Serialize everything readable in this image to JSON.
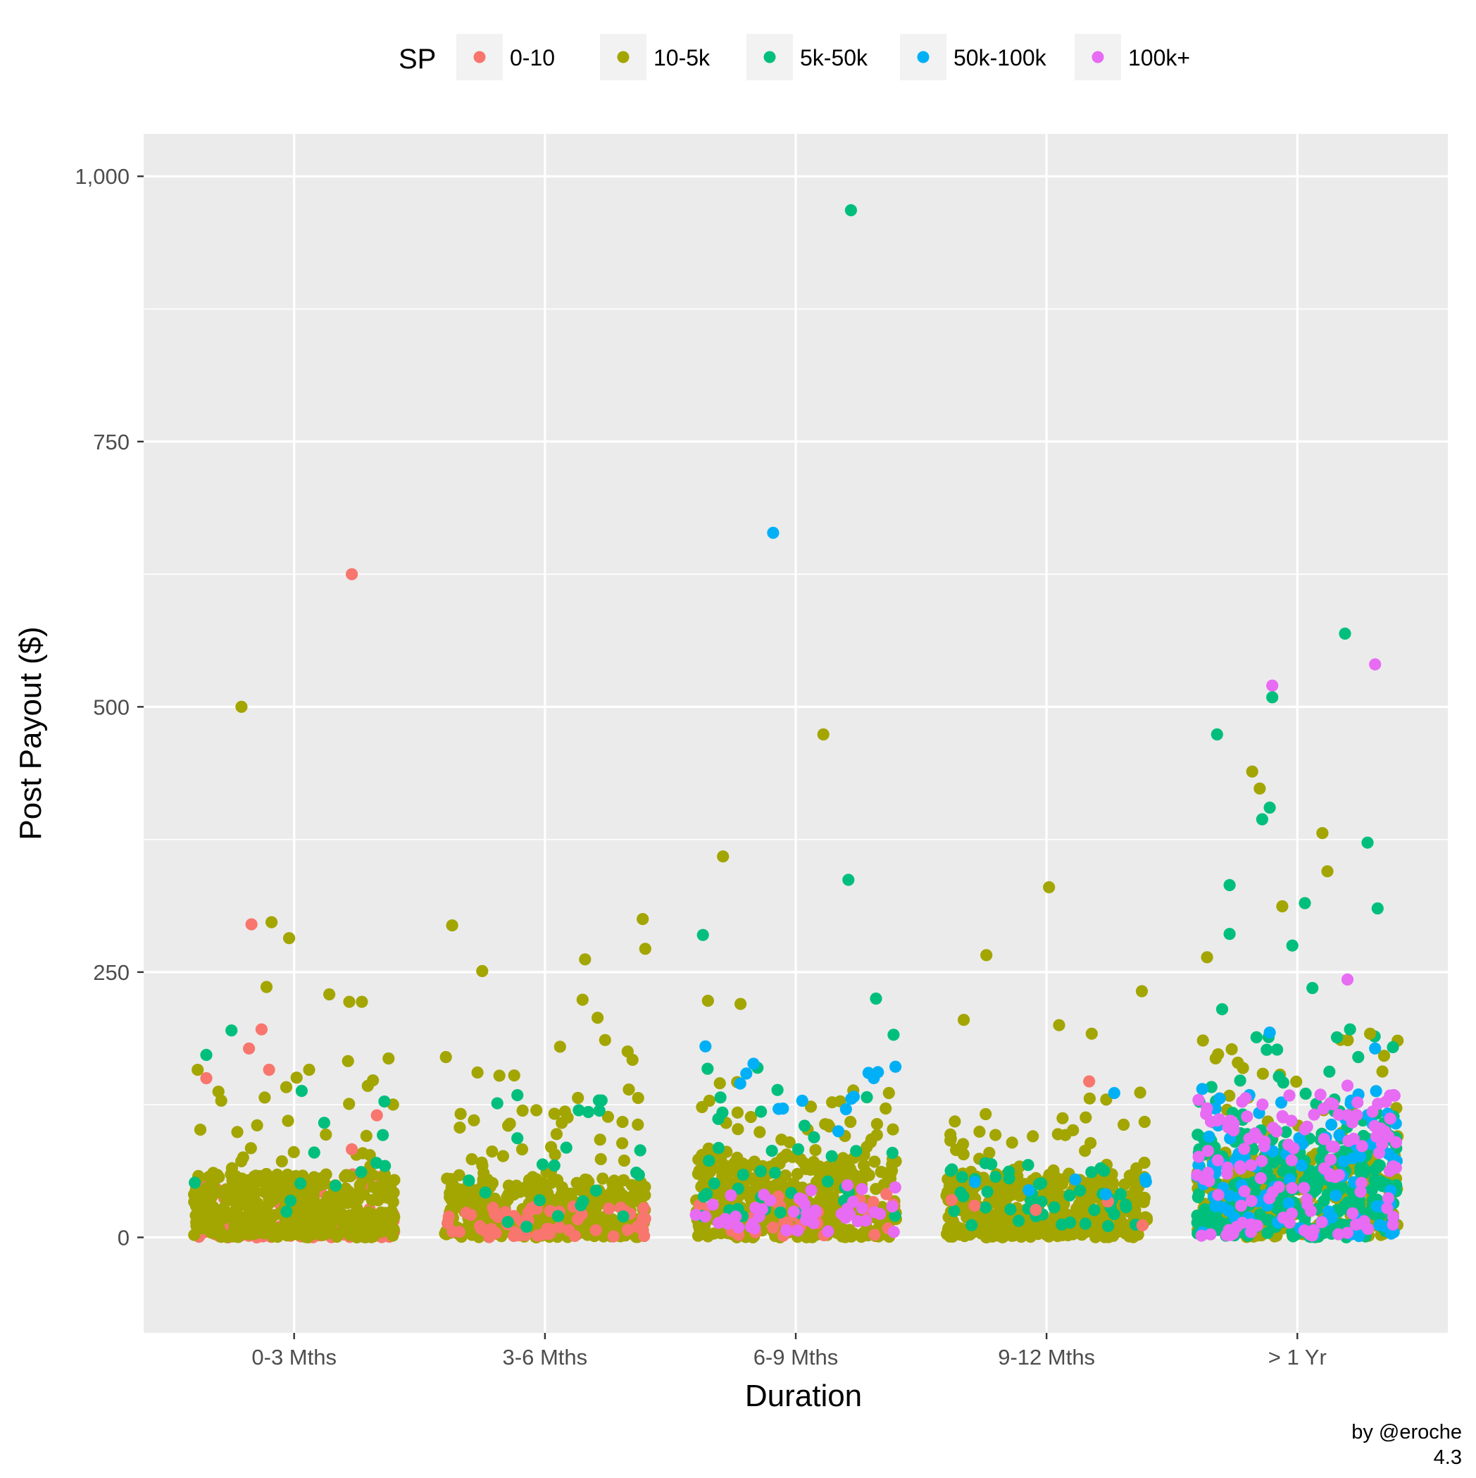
{
  "chart_data": {
    "type": "scatter",
    "title": "",
    "xlabel": "Duration",
    "ylabel": "Post Payout ($)",
    "categories": [
      "0-3 Mths",
      "3-6 Mths",
      "6-9 Mths",
      "9-12 Mths",
      "> 1 Yr"
    ],
    "ylim": [
      -90,
      1040
    ],
    "y_ticks": [
      {
        "value": 0,
        "label": "0"
      },
      {
        "value": 250,
        "label": "250"
      },
      {
        "value": 500,
        "label": "500"
      },
      {
        "value": 750,
        "label": "750"
      },
      {
        "value": 1000,
        "label": "1,000"
      }
    ],
    "grid": true,
    "legend": {
      "title": "SP",
      "position": "top",
      "entries": [
        {
          "name": "0-10",
          "color": "#F8766D"
        },
        {
          "name": "10-5k",
          "color": "#A3A500"
        },
        {
          "name": "5k-50k",
          "color": "#00BF7D"
        },
        {
          "name": "50k-100k",
          "color": "#00B0F6"
        },
        {
          "name": "100k+",
          "color": "#E76BF3"
        }
      ]
    },
    "notable_points": [
      {
        "category": "0-3 Mths",
        "jitter": 0.23,
        "value": 625,
        "series": "0-10"
      },
      {
        "category": "0-3 Mths",
        "jitter": -0.21,
        "value": 500,
        "series": "10-5k"
      },
      {
        "category": "0-3 Mths",
        "jitter": -0.17,
        "value": 295,
        "series": "0-10"
      },
      {
        "category": "0-3 Mths",
        "jitter": -0.09,
        "value": 297,
        "series": "10-5k"
      },
      {
        "category": "0-3 Mths",
        "jitter": -0.02,
        "value": 282,
        "series": "10-5k"
      },
      {
        "category": "0-3 Mths",
        "jitter": -0.11,
        "value": 236,
        "series": "10-5k"
      },
      {
        "category": "0-3 Mths",
        "jitter": 0.14,
        "value": 229,
        "series": "10-5k"
      },
      {
        "category": "0-3 Mths",
        "jitter": 0.22,
        "value": 222,
        "series": "10-5k"
      },
      {
        "category": "0-3 Mths",
        "jitter": 0.27,
        "value": 222,
        "series": "10-5k"
      },
      {
        "category": "0-3 Mths",
        "jitter": -0.25,
        "value": 195,
        "series": "5k-50k"
      },
      {
        "category": "0-3 Mths",
        "jitter": -0.13,
        "value": 196,
        "series": "0-10"
      },
      {
        "category": "0-3 Mths",
        "jitter": -0.18,
        "value": 178,
        "series": "0-10"
      },
      {
        "category": "0-3 Mths",
        "jitter": -0.35,
        "value": 172,
        "series": "5k-50k"
      },
      {
        "category": "0-3 Mths",
        "jitter": -0.1,
        "value": 158,
        "series": "0-10"
      },
      {
        "category": "0-3 Mths",
        "jitter": -0.35,
        "value": 150,
        "series": "0-10"
      },
      {
        "category": "0-3 Mths",
        "jitter": 0.03,
        "value": 138,
        "series": "5k-50k"
      },
      {
        "category": "0-3 Mths",
        "jitter": 0.36,
        "value": 128,
        "series": "5k-50k"
      },
      {
        "category": "0-3 Mths",
        "jitter": 0.33,
        "value": 115,
        "series": "0-10"
      },
      {
        "category": "0-3 Mths",
        "jitter": 0.12,
        "value": 108,
        "series": "5k-50k"
      },
      {
        "category": "0-3 Mths",
        "jitter": 0.23,
        "value": 83,
        "series": "0-10"
      },
      {
        "category": "3-6 Mths",
        "jitter": -0.37,
        "value": 294,
        "series": "10-5k"
      },
      {
        "category": "3-6 Mths",
        "jitter": 0.39,
        "value": 300,
        "series": "10-5k"
      },
      {
        "category": "3-6 Mths",
        "jitter": 0.4,
        "value": 272,
        "series": "10-5k"
      },
      {
        "category": "3-6 Mths",
        "jitter": 0.16,
        "value": 262,
        "series": "10-5k"
      },
      {
        "category": "3-6 Mths",
        "jitter": -0.25,
        "value": 251,
        "series": "10-5k"
      },
      {
        "category": "3-6 Mths",
        "jitter": 0.15,
        "value": 224,
        "series": "10-5k"
      },
      {
        "category": "3-6 Mths",
        "jitter": 0.21,
        "value": 207,
        "series": "10-5k"
      },
      {
        "category": "3-6 Mths",
        "jitter": 0.24,
        "value": 186,
        "series": "10-5k"
      },
      {
        "category": "3-6 Mths",
        "jitter": -0.11,
        "value": 134,
        "series": "5k-50k"
      },
      {
        "category": "3-6 Mths",
        "jitter": 0.38,
        "value": 82,
        "series": "5k-50k"
      },
      {
        "category": "6-9 Mths",
        "jitter": 0.22,
        "value": 968,
        "series": "5k-50k"
      },
      {
        "category": "6-9 Mths",
        "jitter": -0.09,
        "value": 664,
        "series": "50k-100k"
      },
      {
        "category": "6-9 Mths",
        "jitter": 0.11,
        "value": 474,
        "series": "10-5k"
      },
      {
        "category": "6-9 Mths",
        "jitter": -0.29,
        "value": 359,
        "series": "10-5k"
      },
      {
        "category": "6-9 Mths",
        "jitter": 0.21,
        "value": 337,
        "series": "5k-50k"
      },
      {
        "category": "6-9 Mths",
        "jitter": -0.37,
        "value": 285,
        "series": "5k-50k"
      },
      {
        "category": "6-9 Mths",
        "jitter": 0.32,
        "value": 225,
        "series": "5k-50k"
      },
      {
        "category": "6-9 Mths",
        "jitter": -0.35,
        "value": 223,
        "series": "10-5k"
      },
      {
        "category": "6-9 Mths",
        "jitter": -0.22,
        "value": 220,
        "series": "10-5k"
      },
      {
        "category": "6-9 Mths",
        "jitter": 0.39,
        "value": 191,
        "series": "5k-50k"
      },
      {
        "category": "6-9 Mths",
        "jitter": -0.36,
        "value": 180,
        "series": "50k-100k"
      },
      {
        "category": "6-9 Mths",
        "jitter": 0.29,
        "value": 155,
        "series": "50k-100k"
      },
      {
        "category": "6-9 Mths",
        "jitter": 0.17,
        "value": 100,
        "series": "50k-100k"
      },
      {
        "category": "9-12 Mths",
        "jitter": 0.01,
        "value": 330,
        "series": "10-5k"
      },
      {
        "category": "9-12 Mths",
        "jitter": -0.24,
        "value": 266,
        "series": "10-5k"
      },
      {
        "category": "9-12 Mths",
        "jitter": 0.38,
        "value": 232,
        "series": "10-5k"
      },
      {
        "category": "9-12 Mths",
        "jitter": -0.33,
        "value": 205,
        "series": "10-5k"
      },
      {
        "category": "9-12 Mths",
        "jitter": 0.05,
        "value": 200,
        "series": "10-5k"
      },
      {
        "category": "9-12 Mths",
        "jitter": 0.18,
        "value": 192,
        "series": "10-5k"
      },
      {
        "category": "9-12 Mths",
        "jitter": 0.17,
        "value": 147,
        "series": "0-10"
      },
      {
        "category": "9-12 Mths",
        "jitter": 0.27,
        "value": 136,
        "series": "50k-100k"
      },
      {
        "category": "> 1 Yr",
        "jitter": 0.19,
        "value": 569,
        "series": "5k-50k"
      },
      {
        "category": "> 1 Yr",
        "jitter": 0.31,
        "value": 540,
        "series": "100k+"
      },
      {
        "category": "> 1 Yr",
        "jitter": -0.1,
        "value": 520,
        "series": "100k+"
      },
      {
        "category": "> 1 Yr",
        "jitter": -0.1,
        "value": 509,
        "series": "5k-50k"
      },
      {
        "category": "> 1 Yr",
        "jitter": -0.32,
        "value": 474,
        "series": "5k-50k"
      },
      {
        "category": "> 1 Yr",
        "jitter": -0.18,
        "value": 439,
        "series": "10-5k"
      },
      {
        "category": "> 1 Yr",
        "jitter": -0.15,
        "value": 423,
        "series": "10-5k"
      },
      {
        "category": "> 1 Yr",
        "jitter": -0.11,
        "value": 405,
        "series": "5k-50k"
      },
      {
        "category": "> 1 Yr",
        "jitter": -0.14,
        "value": 394,
        "series": "5k-50k"
      },
      {
        "category": "> 1 Yr",
        "jitter": 0.1,
        "value": 381,
        "series": "10-5k"
      },
      {
        "category": "> 1 Yr",
        "jitter": 0.28,
        "value": 372,
        "series": "5k-50k"
      },
      {
        "category": "> 1 Yr",
        "jitter": 0.12,
        "value": 345,
        "series": "10-5k"
      },
      {
        "category": "> 1 Yr",
        "jitter": -0.27,
        "value": 332,
        "series": "5k-50k"
      },
      {
        "category": "> 1 Yr",
        "jitter": 0.03,
        "value": 315,
        "series": "5k-50k"
      },
      {
        "category": "> 1 Yr",
        "jitter": -0.06,
        "value": 312,
        "series": "10-5k"
      },
      {
        "category": "> 1 Yr",
        "jitter": 0.32,
        "value": 310,
        "series": "5k-50k"
      },
      {
        "category": "> 1 Yr",
        "jitter": -0.27,
        "value": 286,
        "series": "5k-50k"
      },
      {
        "category": "> 1 Yr",
        "jitter": -0.02,
        "value": 275,
        "series": "5k-50k"
      },
      {
        "category": "> 1 Yr",
        "jitter": -0.36,
        "value": 264,
        "series": "10-5k"
      },
      {
        "category": "> 1 Yr",
        "jitter": 0.2,
        "value": 243,
        "series": "100k+"
      },
      {
        "category": "> 1 Yr",
        "jitter": 0.06,
        "value": 235,
        "series": "5k-50k"
      },
      {
        "category": "> 1 Yr",
        "jitter": -0.3,
        "value": 215,
        "series": "5k-50k"
      },
      {
        "category": "> 1 Yr",
        "jitter": 0.21,
        "value": 196,
        "series": "5k-50k"
      },
      {
        "category": "> 1 Yr",
        "jitter": -0.11,
        "value": 193,
        "series": "50k-100k"
      },
      {
        "category": "> 1 Yr",
        "jitter": 0.29,
        "value": 192,
        "series": "10-5k"
      },
      {
        "category": "> 1 Yr",
        "jitter": 0.31,
        "value": 178,
        "series": "50k-100k"
      },
      {
        "category": "> 1 Yr",
        "jitter": 0.2,
        "value": 143,
        "series": "100k+"
      }
    ],
    "clusters": [
      {
        "category": "0-3 Mths",
        "series": "0-10",
        "count": 130,
        "min": 0,
        "max": 10,
        "bias": 1
      },
      {
        "category": "0-3 Mths",
        "series": "0-10",
        "count": 28,
        "min": 10,
        "max": 60,
        "bias": 1.4
      },
      {
        "category": "0-3 Mths",
        "series": "10-5k",
        "count": 420,
        "min": 0,
        "max": 60,
        "bias": 1.2
      },
      {
        "category": "0-3 Mths",
        "series": "10-5k",
        "count": 30,
        "min": 60,
        "max": 170,
        "bias": 1.6
      },
      {
        "category": "0-3 Mths",
        "series": "5k-50k",
        "count": 10,
        "min": 20,
        "max": 100,
        "bias": 1
      },
      {
        "category": "3-6 Mths",
        "series": "10-5k",
        "count": 380,
        "min": 0,
        "max": 55,
        "bias": 1.2
      },
      {
        "category": "3-6 Mths",
        "series": "10-5k",
        "count": 45,
        "min": 55,
        "max": 180,
        "bias": 1.6
      },
      {
        "category": "3-6 Mths",
        "series": "0-10",
        "count": 60,
        "min": 0,
        "max": 30,
        "bias": 1.2
      },
      {
        "category": "3-6 Mths",
        "series": "5k-50k",
        "count": 22,
        "min": 10,
        "max": 140,
        "bias": 1.6
      },
      {
        "category": "6-9 Mths",
        "series": "10-5k",
        "count": 420,
        "min": 0,
        "max": 75,
        "bias": 1.2
      },
      {
        "category": "6-9 Mths",
        "series": "10-5k",
        "count": 40,
        "min": 75,
        "max": 160,
        "bias": 1.4
      },
      {
        "category": "6-9 Mths",
        "series": "0-10",
        "count": 30,
        "min": 0,
        "max": 45,
        "bias": 1.2
      },
      {
        "category": "6-9 Mths",
        "series": "5k-50k",
        "count": 40,
        "min": 20,
        "max": 160,
        "bias": 1.5
      },
      {
        "category": "6-9 Mths",
        "series": "50k-100k",
        "count": 12,
        "min": 120,
        "max": 165,
        "bias": 1
      },
      {
        "category": "6-9 Mths",
        "series": "100k+",
        "count": 45,
        "min": 5,
        "max": 50,
        "bias": 1.1
      },
      {
        "category": "9-12 Mths",
        "series": "10-5k",
        "count": 420,
        "min": 0,
        "max": 60,
        "bias": 1.2
      },
      {
        "category": "9-12 Mths",
        "series": "10-5k",
        "count": 35,
        "min": 60,
        "max": 140,
        "bias": 1.5
      },
      {
        "category": "9-12 Mths",
        "series": "5k-50k",
        "count": 45,
        "min": 10,
        "max": 70,
        "bias": 1.1
      },
      {
        "category": "9-12 Mths",
        "series": "0-10",
        "count": 5,
        "min": 0,
        "max": 40,
        "bias": 1
      },
      {
        "category": "9-12 Mths",
        "series": "50k-100k",
        "count": 6,
        "min": 10,
        "max": 60,
        "bias": 1
      },
      {
        "category": "> 1 Yr",
        "series": "10-5k",
        "count": 300,
        "min": 0,
        "max": 80,
        "bias": 1.2
      },
      {
        "category": "> 1 Yr",
        "series": "10-5k",
        "count": 30,
        "min": 80,
        "max": 190,
        "bias": 1.4
      },
      {
        "category": "> 1 Yr",
        "series": "5k-50k",
        "count": 320,
        "min": 0,
        "max": 100,
        "bias": 1.2
      },
      {
        "category": "> 1 Yr",
        "series": "5k-50k",
        "count": 35,
        "min": 100,
        "max": 200,
        "bias": 1.3
      },
      {
        "category": "> 1 Yr",
        "series": "50k-100k",
        "count": 90,
        "min": 0,
        "max": 140,
        "bias": 1.3
      },
      {
        "category": "> 1 Yr",
        "series": "100k+",
        "count": 130,
        "min": 0,
        "max": 135,
        "bias": 1.1
      }
    ]
  },
  "caption": {
    "line1": "by @eroche",
    "line2": "4.3"
  }
}
